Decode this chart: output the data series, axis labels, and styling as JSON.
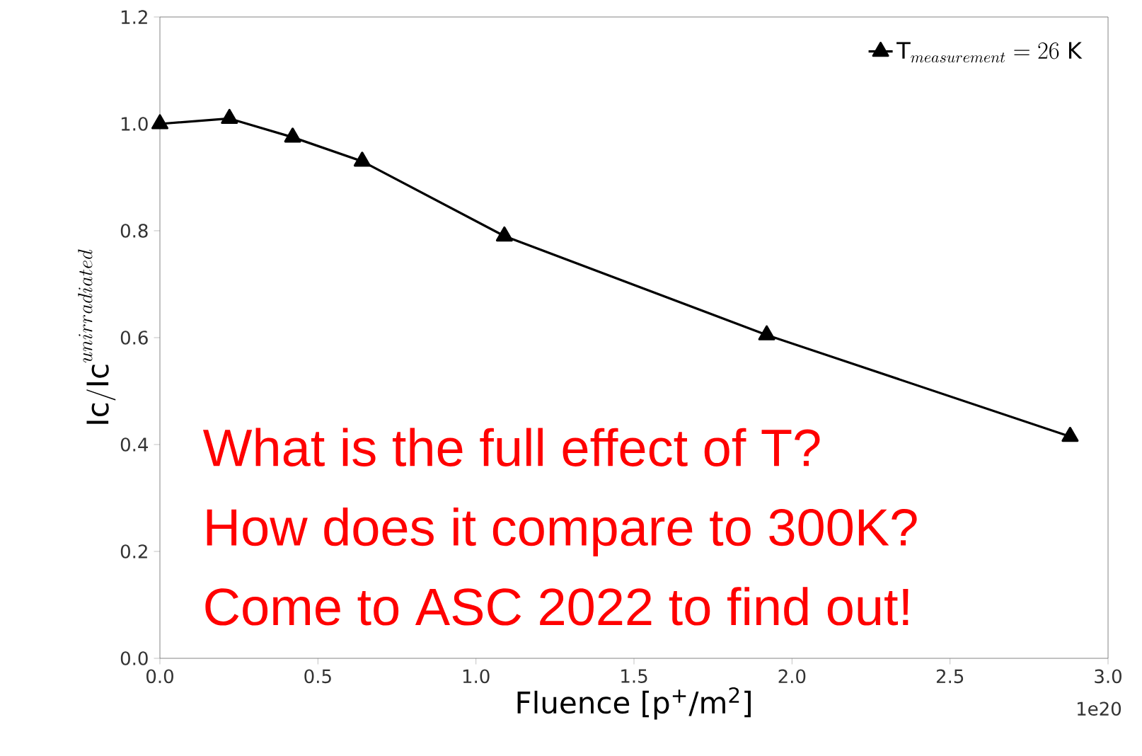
{
  "chart_data": {
    "type": "line",
    "xlabel": "Fluence [p$^{+}$/m$^{2}$]",
    "ylabel": "\\mathrm{Ic/Ic}^{unirradiated}",
    "x": [
      0,
      0.22,
      0.42,
      0.64,
      1.09,
      1.92,
      2.88
    ],
    "series": [
      {
        "name": "\\mathrm{T}_{measurement} = 26\\ \\mathrm{K}",
        "color": "#000000",
        "values": [
          1.0,
          1.01,
          0.975,
          0.93,
          0.79,
          0.605,
          0.415
        ]
      }
    ],
    "xlim": [
      0,
      3
    ],
    "ylim": [
      0,
      1.2
    ],
    "xticks": [
      {
        "value": 0,
        "label": "0.0"
      },
      0.5,
      {
        "value": 1,
        "label": "1.0"
      },
      1.5,
      {
        "value": 2,
        "label": "2.0"
      },
      2.5,
      {
        "value": 3,
        "label": "3.0"
      }
    ],
    "yticks": [
      {
        "value": 0,
        "label": "0.0"
      },
      0.2,
      0.4,
      0.6,
      0.8,
      {
        "value": 1,
        "label": "1.0"
      },
      1.2
    ],
    "marker": "triangle",
    "line_style": "solid",
    "legend": "top right",
    "grid": false,
    "annotations": [
      "What is the full effect of T?",
      "How does it compare to 300K?",
      "Come to ASC 2022 to find out!",
      "1e20"
    ]
  }
}
